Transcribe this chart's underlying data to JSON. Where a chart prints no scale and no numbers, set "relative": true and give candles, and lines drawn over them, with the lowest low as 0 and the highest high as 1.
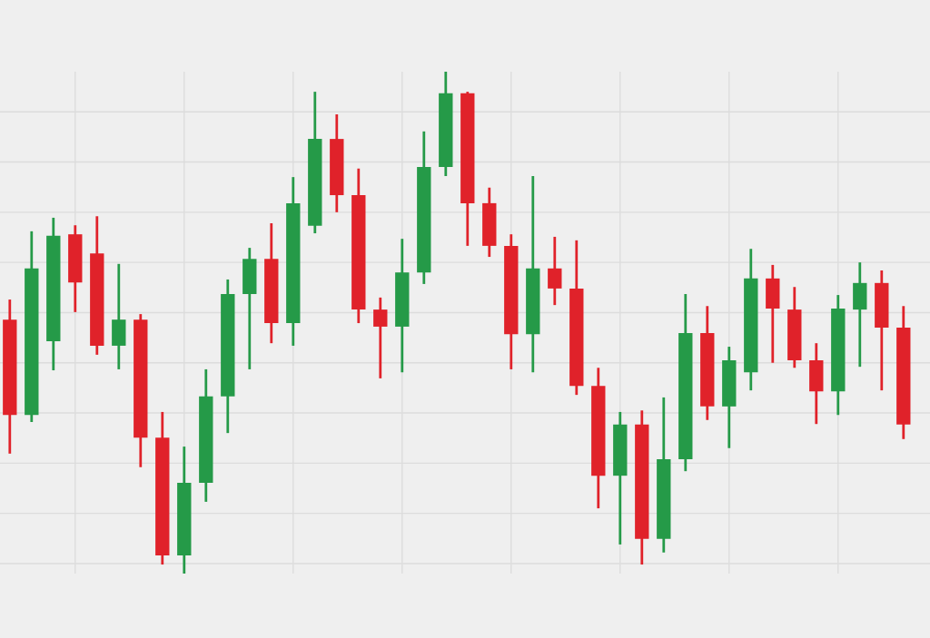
{
  "chart_data": {
    "type": "candlestick",
    "relative": true,
    "grid": true,
    "categories": [
      null,
      null,
      null,
      null,
      null,
      null,
      null,
      null,
      null,
      null,
      null,
      null,
      null,
      null,
      null,
      null,
      null,
      null,
      null,
      null,
      null,
      null,
      null,
      null,
      null,
      null,
      null,
      null,
      null,
      null,
      null,
      null,
      null,
      null,
      null,
      null,
      null,
      null,
      null,
      null,
      null,
      null
    ],
    "ohlc": [
      [
        0.506,
        0.546,
        0.239,
        0.316
      ],
      [
        0.316,
        0.682,
        0.302,
        0.608
      ],
      [
        0.463,
        0.709,
        0.405,
        0.673
      ],
      [
        0.676,
        0.694,
        0.521,
        0.58
      ],
      [
        0.638,
        0.712,
        0.436,
        0.454
      ],
      [
        0.454,
        0.617,
        0.407,
        0.506
      ],
      [
        0.506,
        0.517,
        0.212,
        0.271
      ],
      [
        0.271,
        0.322,
        0.018,
        0.036
      ],
      [
        0.036,
        0.253,
        0.0,
        0.181
      ],
      [
        0.181,
        0.407,
        0.143,
        0.353
      ],
      [
        0.353,
        0.586,
        0.28,
        0.557
      ],
      [
        0.557,
        0.649,
        0.407,
        0.627
      ],
      [
        0.627,
        0.698,
        0.459,
        0.499
      ],
      [
        0.499,
        0.79,
        0.454,
        0.738
      ],
      [
        0.693,
        0.96,
        0.678,
        0.866
      ],
      [
        0.866,
        0.915,
        0.72,
        0.754
      ],
      [
        0.754,
        0.807,
        0.499,
        0.526
      ],
      [
        0.526,
        0.55,
        0.389,
        0.492
      ],
      [
        0.492,
        0.667,
        0.401,
        0.6
      ],
      [
        0.6,
        0.881,
        0.577,
        0.81
      ],
      [
        0.81,
        1.0,
        0.792,
        0.957
      ],
      [
        0.957,
        0.96,
        0.653,
        0.738
      ],
      [
        0.738,
        0.769,
        0.631,
        0.653
      ],
      [
        0.653,
        0.676,
        0.407,
        0.477
      ],
      [
        0.477,
        0.792,
        0.401,
        0.608
      ],
      [
        0.608,
        0.671,
        0.535,
        0.568
      ],
      [
        0.568,
        0.664,
        0.356,
        0.374
      ],
      [
        0.374,
        0.41,
        0.13,
        0.195
      ],
      [
        0.195,
        0.322,
        0.058,
        0.297
      ],
      [
        0.297,
        0.325,
        0.018,
        0.069
      ],
      [
        0.069,
        0.351,
        0.042,
        0.228
      ],
      [
        0.228,
        0.557,
        0.204,
        0.479
      ],
      [
        0.479,
        0.533,
        0.306,
        0.333
      ],
      [
        0.333,
        0.452,
        0.25,
        0.425
      ],
      [
        0.401,
        0.647,
        0.365,
        0.588
      ],
      [
        0.588,
        0.615,
        0.42,
        0.528
      ],
      [
        0.526,
        0.571,
        0.41,
        0.425
      ],
      [
        0.425,
        0.459,
        0.298,
        0.363
      ],
      [
        0.363,
        0.555,
        0.316,
        0.528
      ],
      [
        0.526,
        0.62,
        0.412,
        0.579
      ],
      [
        0.579,
        0.604,
        0.365,
        0.49
      ],
      [
        0.49,
        0.533,
        0.268,
        0.297
      ]
    ],
    "colors": [
      "#e0222a",
      "#259a48",
      "#259a48",
      "#e0222a",
      "#e0222a",
      "#259a48",
      "#e0222a",
      "#e0222a",
      "#259a48",
      "#259a48",
      "#259a48",
      "#259a48",
      "#e0222a",
      "#259a48",
      "#259a48",
      "#e0222a",
      "#e0222a",
      "#e0222a",
      "#259a48",
      "#259a48",
      "#259a48",
      "#e0222a",
      "#e0222a",
      "#e0222a",
      "#259a48",
      "#e0222a",
      "#e0222a",
      "#e0222a",
      "#259a48",
      "#e0222a",
      "#259a48",
      "#259a48",
      "#e0222a",
      "#259a48",
      "#259a48",
      "#e0222a",
      "#e0222a",
      "#e0222a",
      "#259a48",
      "#259a48",
      "#e0222a",
      "#e0222a"
    ]
  }
}
